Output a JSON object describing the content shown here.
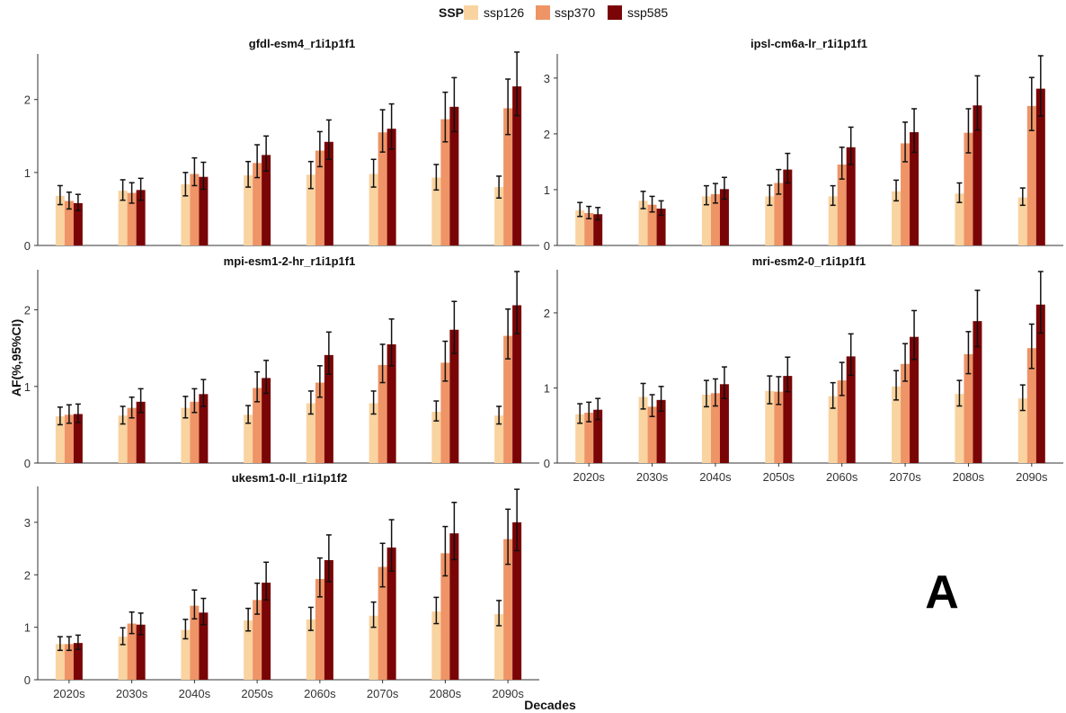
{
  "legend": {
    "title": "SSP",
    "items": [
      {
        "label": "ssp126",
        "color": "#f9d3a0"
      },
      {
        "label": "ssp370",
        "color": "#ef9466"
      },
      {
        "label": "ssp585",
        "color": "#7a0506"
      }
    ]
  },
  "ylabel": "AF(%,95%CI)",
  "xlabel": "Decades",
  "panel_letter": "A",
  "chart_data": [
    {
      "type": "bar",
      "title": "gfdl-esm4_r1i1p1f1",
      "ylim": [
        0,
        2.6
      ],
      "yticks": [
        0,
        1,
        2
      ],
      "categories": [
        "2020s",
        "2030s",
        "2040s",
        "2050s",
        "2060s",
        "2070s",
        "2080s",
        "2090s"
      ],
      "series": [
        {
          "name": "ssp126",
          "values": [
            0.68,
            0.75,
            0.84,
            0.96,
            0.97,
            0.98,
            0.93,
            0.8
          ],
          "lower": [
            0.56,
            0.62,
            0.68,
            0.8,
            0.78,
            0.8,
            0.76,
            0.65
          ],
          "upper": [
            0.82,
            0.9,
            1.0,
            1.15,
            1.15,
            1.18,
            1.11,
            0.95
          ]
        },
        {
          "name": "ssp370",
          "values": [
            0.61,
            0.72,
            0.98,
            1.13,
            1.3,
            1.55,
            1.73,
            1.88
          ],
          "lower": [
            0.5,
            0.58,
            0.82,
            0.93,
            1.08,
            1.28,
            1.42,
            1.52
          ],
          "upper": [
            0.73,
            0.86,
            1.2,
            1.38,
            1.56,
            1.86,
            2.1,
            2.28
          ]
        },
        {
          "name": "ssp585",
          "values": [
            0.58,
            0.76,
            0.94,
            1.24,
            1.42,
            1.6,
            1.9,
            2.18
          ],
          "lower": [
            0.48,
            0.62,
            0.77,
            1.02,
            1.18,
            1.32,
            1.56,
            1.78
          ],
          "upper": [
            0.7,
            0.92,
            1.14,
            1.5,
            1.72,
            1.94,
            2.3,
            2.65
          ]
        }
      ]
    },
    {
      "type": "bar",
      "title": "ipsl-cm6a-lr_r1i1p1f1",
      "ylim": [
        0,
        3.4
      ],
      "yticks": [
        0,
        1,
        2,
        3
      ],
      "categories": [
        "2020s",
        "2030s",
        "2040s",
        "2050s",
        "2060s",
        "2070s",
        "2080s",
        "2090s"
      ],
      "series": [
        {
          "name": "ssp126",
          "values": [
            0.63,
            0.8,
            0.88,
            0.88,
            0.88,
            0.97,
            0.93,
            0.86
          ],
          "lower": [
            0.52,
            0.66,
            0.73,
            0.72,
            0.72,
            0.8,
            0.77,
            0.72
          ],
          "upper": [
            0.77,
            0.97,
            1.07,
            1.08,
            1.07,
            1.17,
            1.12,
            1.03
          ]
        },
        {
          "name": "ssp370",
          "values": [
            0.58,
            0.73,
            0.92,
            1.12,
            1.45,
            1.83,
            2.02,
            2.5
          ],
          "lower": [
            0.48,
            0.6,
            0.76,
            0.92,
            1.19,
            1.5,
            1.66,
            2.06
          ],
          "upper": [
            0.7,
            0.88,
            1.11,
            1.36,
            1.76,
            2.21,
            2.45,
            3.01
          ]
        },
        {
          "name": "ssp585",
          "values": [
            0.56,
            0.66,
            1.01,
            1.36,
            1.76,
            2.03,
            2.51,
            2.81
          ],
          "lower": [
            0.46,
            0.54,
            0.83,
            1.12,
            1.45,
            1.67,
            2.07,
            2.32
          ],
          "upper": [
            0.68,
            0.8,
            1.22,
            1.65,
            2.12,
            2.45,
            3.04,
            3.4
          ]
        }
      ]
    },
    {
      "type": "bar",
      "title": "mpi-esm1-2-hr_r1i1p1f1",
      "ylim": [
        0,
        2.5
      ],
      "yticks": [
        0,
        1,
        2
      ],
      "categories": [
        "2020s",
        "2030s",
        "2040s",
        "2050s",
        "2060s",
        "2070s",
        "2080s",
        "2090s"
      ],
      "series": [
        {
          "name": "ssp126",
          "values": [
            0.61,
            0.62,
            0.72,
            0.63,
            0.78,
            0.78,
            0.67,
            0.62
          ],
          "lower": [
            0.5,
            0.51,
            0.59,
            0.52,
            0.64,
            0.64,
            0.55,
            0.51
          ],
          "upper": [
            0.73,
            0.74,
            0.87,
            0.75,
            0.94,
            0.94,
            0.81,
            0.74
          ]
        },
        {
          "name": "ssp370",
          "values": [
            0.63,
            0.72,
            0.8,
            0.98,
            1.05,
            1.28,
            1.31,
            1.66
          ],
          "lower": [
            0.52,
            0.59,
            0.66,
            0.8,
            0.86,
            1.05,
            1.07,
            1.36
          ],
          "upper": [
            0.76,
            0.86,
            0.97,
            1.19,
            1.27,
            1.55,
            1.59,
            2.01
          ]
        },
        {
          "name": "ssp585",
          "values": [
            0.64,
            0.8,
            0.9,
            1.11,
            1.41,
            1.55,
            1.74,
            2.06
          ],
          "lower": [
            0.53,
            0.66,
            0.74,
            0.91,
            1.16,
            1.27,
            1.43,
            1.69
          ],
          "upper": [
            0.77,
            0.97,
            1.09,
            1.34,
            1.71,
            1.88,
            2.11,
            2.5
          ]
        }
      ]
    },
    {
      "type": "bar",
      "title": "mri-esm2-0_r1i1p1f1",
      "ylim": [
        0,
        2.55
      ],
      "yticks": [
        0,
        1,
        2
      ],
      "categories": [
        "2020s",
        "2030s",
        "2040s",
        "2050s",
        "2060s",
        "2070s",
        "2080s",
        "2090s"
      ],
      "series": [
        {
          "name": "ssp126",
          "values": [
            0.65,
            0.88,
            0.91,
            0.96,
            0.89,
            1.02,
            0.92,
            0.86
          ],
          "lower": [
            0.53,
            0.72,
            0.75,
            0.79,
            0.73,
            0.84,
            0.76,
            0.7
          ],
          "upper": [
            0.79,
            1.06,
            1.1,
            1.16,
            1.07,
            1.23,
            1.1,
            1.04
          ]
        },
        {
          "name": "ssp370",
          "values": [
            0.67,
            0.75,
            0.93,
            0.95,
            1.1,
            1.32,
            1.45,
            1.53
          ],
          "lower": [
            0.55,
            0.62,
            0.76,
            0.78,
            0.9,
            1.09,
            1.19,
            1.26
          ],
          "upper": [
            0.81,
            0.91,
            1.12,
            1.15,
            1.34,
            1.59,
            1.75,
            1.85
          ]
        },
        {
          "name": "ssp585",
          "values": [
            0.71,
            0.84,
            1.05,
            1.16,
            1.42,
            1.68,
            1.89,
            2.11
          ],
          "lower": [
            0.58,
            0.69,
            0.86,
            0.95,
            1.17,
            1.38,
            1.55,
            1.73
          ],
          "upper": [
            0.86,
            1.02,
            1.28,
            1.41,
            1.72,
            2.03,
            2.3,
            2.55
          ]
        }
      ]
    },
    {
      "type": "bar",
      "title": "ukesm1-0-ll_r1i1p1f2",
      "ylim": [
        0,
        3.65
      ],
      "yticks": [
        0,
        1,
        2,
        3
      ],
      "categories": [
        "2020s",
        "2030s",
        "2040s",
        "2050s",
        "2060s",
        "2070s",
        "2080s",
        "2090s"
      ],
      "series": [
        {
          "name": "ssp126",
          "values": [
            0.68,
            0.82,
            0.95,
            1.13,
            1.15,
            1.22,
            1.3,
            1.25
          ],
          "lower": [
            0.56,
            0.67,
            0.78,
            0.93,
            0.94,
            1.0,
            1.07,
            1.03
          ],
          "upper": [
            0.82,
            0.99,
            1.15,
            1.36,
            1.38,
            1.48,
            1.57,
            1.51
          ]
        },
        {
          "name": "ssp370",
          "values": [
            0.68,
            1.07,
            1.41,
            1.52,
            1.92,
            2.15,
            2.41,
            2.68
          ],
          "lower": [
            0.56,
            0.88,
            1.16,
            1.25,
            1.58,
            1.77,
            1.98,
            2.2
          ],
          "upper": [
            0.82,
            1.29,
            1.71,
            1.84,
            2.32,
            2.6,
            2.92,
            3.25
          ]
        },
        {
          "name": "ssp585",
          "values": [
            0.7,
            1.05,
            1.28,
            1.85,
            2.28,
            2.52,
            2.79,
            3.0
          ],
          "lower": [
            0.58,
            0.86,
            1.05,
            1.52,
            1.87,
            2.07,
            2.29,
            2.46
          ],
          "upper": [
            0.85,
            1.27,
            1.55,
            2.24,
            2.76,
            3.05,
            3.38,
            3.63
          ]
        }
      ]
    }
  ]
}
